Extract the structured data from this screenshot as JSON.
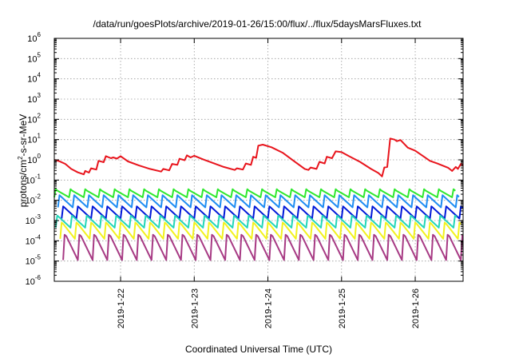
{
  "chart_data": {
    "type": "line",
    "title": "/data/run/goesPlots/archive/2019-01-26/15:00/flux/../flux/5daysMarsFluxes.txt",
    "xlabel": "Coordinated Universal Time (UTC)",
    "ylabel_main": "protons/cm",
    "ylabel_sup": "2",
    "ylabel_rest": "-s-sr-MeV",
    "y_scale": "log",
    "ylim_exp": [
      -6,
      6
    ],
    "y_tick_labels": [
      {
        "exp": -6,
        "base": "10",
        "sup": "-6"
      },
      {
        "exp": -5,
        "base": "10",
        "sup": "-5"
      },
      {
        "exp": -4,
        "base": "10",
        "sup": "-4"
      },
      {
        "exp": -3,
        "base": "10",
        "sup": "-3"
      },
      {
        "exp": -2,
        "base": "10",
        "sup": "-2"
      },
      {
        "exp": -1,
        "base": "10",
        "sup": "-1"
      },
      {
        "exp": 0,
        "base": "10",
        "sup": "0"
      },
      {
        "exp": 1,
        "base": "10",
        "sup": "1"
      },
      {
        "exp": 2,
        "base": "10",
        "sup": "2"
      },
      {
        "exp": 3,
        "base": "10",
        "sup": "3"
      },
      {
        "exp": 4,
        "base": "10",
        "sup": "4"
      },
      {
        "exp": 5,
        "base": "10",
        "sup": "5"
      },
      {
        "exp": 6,
        "base": "10",
        "sup": "6"
      }
    ],
    "xlim_days": [
      21.1,
      26.65
    ],
    "x_ticks": [
      {
        "day": 22,
        "label": "2019-1-22"
      },
      {
        "day": 23,
        "label": "2019-1-23"
      },
      {
        "day": 24,
        "label": "2019-1-24"
      },
      {
        "day": 25,
        "label": "2019-1-25"
      },
      {
        "day": 26,
        "label": "2019-1-26"
      }
    ],
    "grid": true,
    "series": [
      {
        "color": "#e8141c",
        "points": [
          [
            21.1,
            0.0
          ],
          [
            21.17,
            -0.07
          ],
          [
            21.25,
            -0.2
          ],
          [
            21.33,
            -0.45
          ],
          [
            21.42,
            -0.62
          ],
          [
            21.5,
            -0.72
          ],
          [
            21.52,
            -0.55
          ],
          [
            21.57,
            -0.63
          ],
          [
            21.6,
            -0.42
          ],
          [
            21.67,
            -0.48
          ],
          [
            21.7,
            -0.05
          ],
          [
            21.77,
            -0.12
          ],
          [
            21.8,
            0.18
          ],
          [
            21.87,
            0.08
          ],
          [
            21.9,
            0.12
          ],
          [
            21.95,
            0.06
          ],
          [
            22.0,
            0.18
          ],
          [
            22.1,
            -0.08
          ],
          [
            22.25,
            -0.28
          ],
          [
            22.4,
            -0.45
          ],
          [
            22.55,
            -0.58
          ],
          [
            22.58,
            -0.45
          ],
          [
            22.66,
            -0.52
          ],
          [
            22.7,
            -0.2
          ],
          [
            22.77,
            -0.25
          ],
          [
            22.8,
            0.05
          ],
          [
            22.87,
            -0.02
          ],
          [
            22.9,
            0.22
          ],
          [
            22.95,
            0.12
          ],
          [
            23.0,
            0.2
          ],
          [
            23.1,
            0.05
          ],
          [
            23.25,
            -0.15
          ],
          [
            23.4,
            -0.35
          ],
          [
            23.55,
            -0.5
          ],
          [
            23.58,
            -0.42
          ],
          [
            23.66,
            -0.48
          ],
          [
            23.7,
            -0.18
          ],
          [
            23.77,
            -0.25
          ],
          [
            23.8,
            0.15
          ],
          [
            23.84,
            0.1
          ],
          [
            23.87,
            0.7
          ],
          [
            23.93,
            0.75
          ],
          [
            24.05,
            0.62
          ],
          [
            24.2,
            0.35
          ],
          [
            24.35,
            -0.05
          ],
          [
            24.5,
            -0.45
          ],
          [
            24.55,
            -0.5
          ],
          [
            24.58,
            -0.38
          ],
          [
            24.66,
            -0.45
          ],
          [
            24.7,
            -0.1
          ],
          [
            24.77,
            -0.18
          ],
          [
            24.8,
            0.15
          ],
          [
            24.87,
            0.08
          ],
          [
            24.92,
            0.42
          ],
          [
            25.0,
            0.38
          ],
          [
            25.1,
            0.18
          ],
          [
            25.25,
            -0.1
          ],
          [
            25.4,
            -0.45
          ],
          [
            25.5,
            -0.65
          ],
          [
            25.55,
            -0.82
          ],
          [
            25.58,
            -0.38
          ],
          [
            25.62,
            -0.35
          ],
          [
            25.66,
            1.05
          ],
          [
            25.72,
            1.0
          ],
          [
            25.75,
            0.92
          ],
          [
            25.8,
            0.98
          ],
          [
            25.9,
            0.6
          ],
          [
            26.0,
            0.45
          ],
          [
            26.1,
            0.2
          ],
          [
            26.2,
            -0.05
          ],
          [
            26.3,
            -0.18
          ],
          [
            26.45,
            -0.4
          ],
          [
            26.5,
            -0.55
          ],
          [
            26.55,
            -0.35
          ],
          [
            26.58,
            -0.45
          ],
          [
            26.62,
            -0.2
          ],
          [
            26.65,
            -0.25
          ]
        ]
      },
      {
        "color": "#2fe82f",
        "saw": {
          "hi": -1.45,
          "lo": -1.85,
          "phase": 0.0
        }
      },
      {
        "color": "#1e8cf2",
        "saw": {
          "hi": -1.75,
          "lo": -2.35,
          "phase": 0.05
        }
      },
      {
        "color": "#0018d8",
        "saw": {
          "hi": -2.3,
          "lo": -2.9,
          "phase": 0.1
        }
      },
      {
        "color": "#23d6b8",
        "saw": {
          "hi": -2.75,
          "lo": -3.35,
          "phase": 0.02
        }
      },
      {
        "color": "#f2f21e",
        "saw": {
          "hi": -3.1,
          "lo": -3.9,
          "phase": 0.08
        }
      },
      {
        "color": "#a73a84",
        "saw": {
          "hi": -3.7,
          "lo": -4.95,
          "phase": 0.12
        }
      }
    ]
  }
}
